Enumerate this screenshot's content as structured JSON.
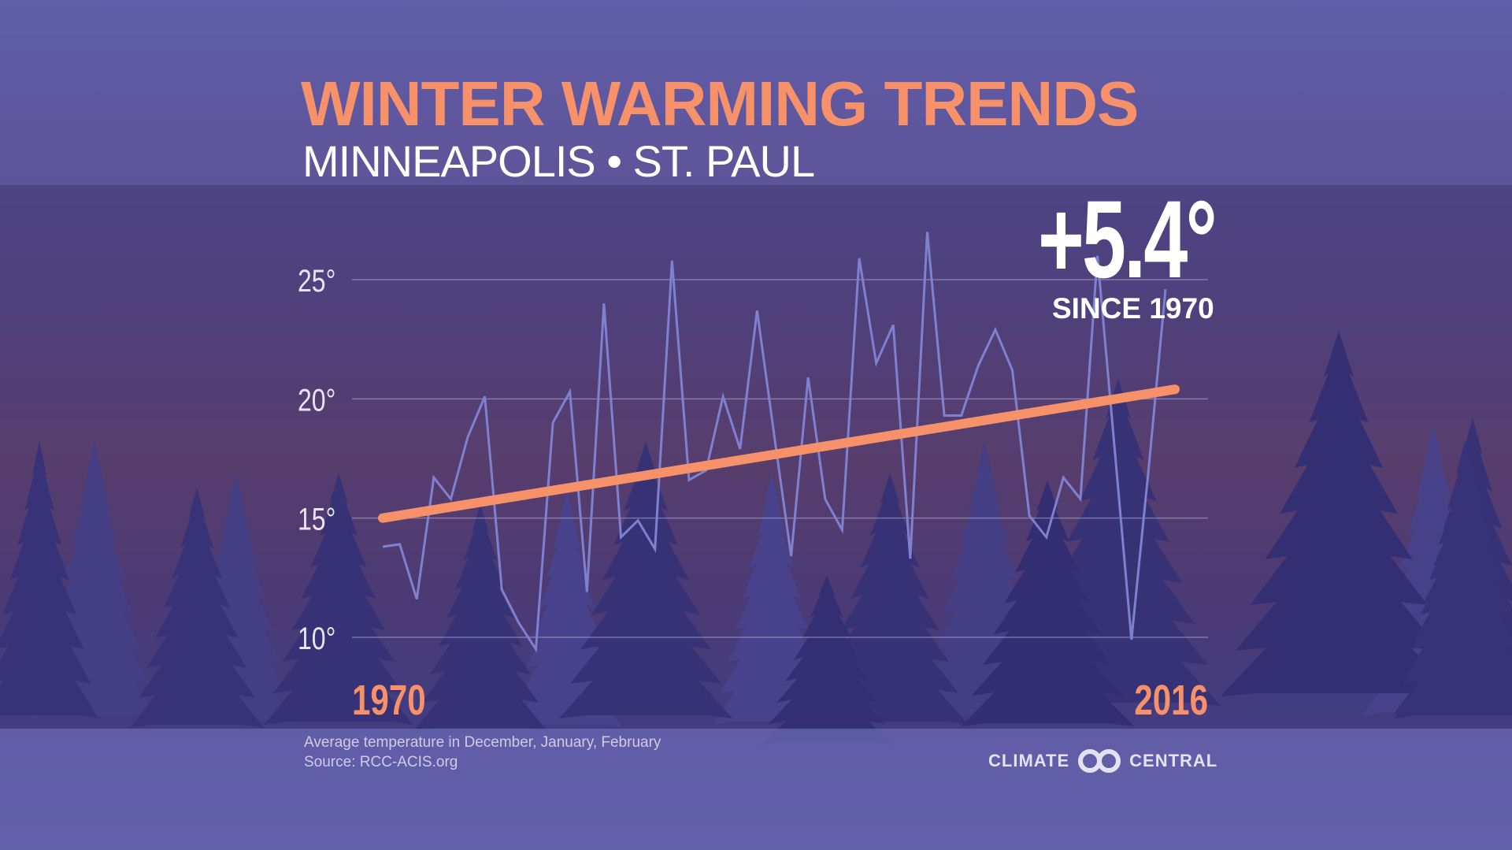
{
  "header": {
    "title": "WINTER WARMING TRENDS",
    "subtitle": "MINNEAPOLIS • ST. PAUL"
  },
  "callout": {
    "value": "+5.4°",
    "label": "SINCE 1970"
  },
  "footer": {
    "note": "Average temperature in December, January, February",
    "source": "Source: RCC-ACIS.org",
    "logo_left": "CLIMATE",
    "logo_right": "CENTRAL"
  },
  "colors": {
    "trend": "#f7916a",
    "series": "#7f80cf",
    "title": "#f7916a"
  },
  "chart_data": {
    "type": "line",
    "title": "WINTER WARMING TRENDS",
    "xlabel": "",
    "ylabel": "",
    "x_tick_labels": [
      "1970",
      "2016"
    ],
    "y_ticks": [
      10,
      15,
      20,
      25
    ],
    "y_tick_labels": [
      "10°",
      "15°",
      "20°",
      "25°"
    ],
    "xlim": [
      1970,
      2016
    ],
    "ylim": [
      7,
      28
    ],
    "grid": true,
    "x": [
      1970,
      1971,
      1972,
      1973,
      1974,
      1975,
      1976,
      1977,
      1978,
      1979,
      1980,
      1981,
      1982,
      1983,
      1984,
      1985,
      1986,
      1987,
      1988,
      1989,
      1990,
      1991,
      1992,
      1993,
      1994,
      1995,
      1996,
      1997,
      1998,
      1999,
      2000,
      2001,
      2002,
      2003,
      2004,
      2005,
      2006,
      2007,
      2008,
      2009,
      2010,
      2011,
      2012,
      2013,
      2014,
      2015,
      2016
    ],
    "series": [
      {
        "values": [
          13.8,
          13.9,
          11.6,
          16.7,
          15.8,
          18.4,
          20.1,
          12.0,
          10.6,
          9.5,
          19.0,
          20.3,
          11.9,
          24.0,
          14.2,
          14.9,
          13.7,
          25.8,
          16.6,
          17.0,
          20.1,
          17.9,
          23.7,
          18.5,
          13.4,
          20.9,
          15.8,
          14.5,
          25.9,
          21.5,
          23.1,
          13.3,
          27.0,
          19.3,
          19.3,
          21.4,
          22.9,
          21.2,
          15.1,
          14.2,
          16.7,
          15.8,
          26.0,
          18.0,
          9.9,
          17.0,
          24.6
        ]
      },
      {
        "type": "trend",
        "x": [
          1970,
          2016
        ],
        "values": [
          15.0,
          20.4
        ]
      }
    ]
  }
}
